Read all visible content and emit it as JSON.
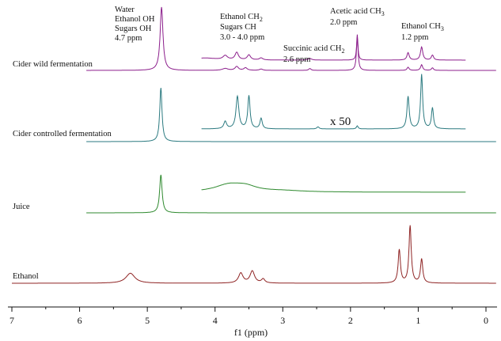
{
  "chart_data": {
    "type": "line",
    "title": "",
    "xlabel": "f1 (ppm)",
    "ylabel": "",
    "xlim": [
      7.2,
      -0.2
    ],
    "x_reversed": true,
    "xticks": [
      "7",
      "6",
      "5",
      "4",
      "3",
      "2",
      "1",
      "0"
    ],
    "grid": false,
    "legend": "none",
    "scale_label": "x 50",
    "series": [
      {
        "name": "Cider wild fermentation",
        "color": "#8c1f8c",
        "baseline_ppm": [
          -0.15,
          5.9
        ],
        "peaks": [
          {
            "ppm": 4.79,
            "height": 1.0,
            "width": 0.025
          },
          {
            "ppm": 3.85,
            "height": 0.03,
            "width": 0.05
          },
          {
            "ppm": 3.68,
            "height": 0.06,
            "width": 0.03
          },
          {
            "ppm": 3.55,
            "height": 0.04,
            "width": 0.03
          },
          {
            "ppm": 3.32,
            "height": 0.02,
            "width": 0.03
          },
          {
            "ppm": 2.6,
            "height": 0.03,
            "width": 0.02
          },
          {
            "ppm": 1.9,
            "height": 0.52,
            "width": 0.015
          },
          {
            "ppm": 1.15,
            "height": 0.05,
            "width": 0.018
          },
          {
            "ppm": 0.95,
            "height": 0.09,
            "width": 0.018
          },
          {
            "ppm": 0.79,
            "height": 0.04,
            "width": 0.018
          }
        ],
        "inset_range_ppm": [
          4.2,
          0.3
        ],
        "inset_peaks": [
          {
            "ppm": 4.15,
            "height": 0.05,
            "width": 0.2
          },
          {
            "ppm": 3.85,
            "height": 0.1,
            "width": 0.04
          },
          {
            "ppm": 3.68,
            "height": 0.18,
            "width": 0.03
          },
          {
            "ppm": 3.5,
            "height": 0.12,
            "width": 0.03
          },
          {
            "ppm": 3.32,
            "height": 0.05,
            "width": 0.03
          },
          {
            "ppm": 2.6,
            "height": 0.04,
            "width": 0.03
          },
          {
            "ppm": 1.9,
            "height": 0.62,
            "width": 0.012
          },
          {
            "ppm": 1.15,
            "height": 0.18,
            "width": 0.02
          },
          {
            "ppm": 0.95,
            "height": 0.32,
            "width": 0.02
          },
          {
            "ppm": 0.79,
            "height": 0.12,
            "width": 0.02
          }
        ]
      },
      {
        "name": "Cider controlled fermentation",
        "color": "#2b7a80",
        "baseline_ppm": [
          -0.15,
          5.9
        ],
        "peaks": [
          {
            "ppm": 4.8,
            "height": 1.0,
            "width": 0.02
          }
        ],
        "inset_range_ppm": [
          4.2,
          0.3
        ],
        "inset_peaks": [
          {
            "ppm": 3.85,
            "height": 0.14,
            "width": 0.025
          },
          {
            "ppm": 3.67,
            "height": 0.62,
            "width": 0.025
          },
          {
            "ppm": 3.5,
            "height": 0.63,
            "width": 0.02
          },
          {
            "ppm": 3.32,
            "height": 0.2,
            "width": 0.02
          },
          {
            "ppm": 2.48,
            "height": 0.04,
            "width": 0.02
          },
          {
            "ppm": 1.9,
            "height": 0.06,
            "width": 0.015
          },
          {
            "ppm": 1.15,
            "height": 0.62,
            "width": 0.02
          },
          {
            "ppm": 0.95,
            "height": 1.04,
            "width": 0.018
          },
          {
            "ppm": 0.79,
            "height": 0.4,
            "width": 0.018
          }
        ]
      },
      {
        "name": "Juice",
        "color": "#2f8a2f",
        "baseline_ppm": [
          -0.15,
          5.9
        ],
        "peaks": [
          {
            "ppm": 4.8,
            "height": 1.0,
            "width": 0.022
          }
        ],
        "inset_range_ppm": [
          4.2,
          0.3
        ],
        "inset_peaks": [
          {
            "ppm": 3.8,
            "height": 0.22,
            "width": 0.25
          },
          {
            "ppm": 3.55,
            "height": 0.15,
            "width": 0.2
          },
          {
            "ppm": 3.0,
            "height": 0.04,
            "width": 0.35
          }
        ]
      },
      {
        "name": "Ethanol",
        "color": "#8f2424",
        "baseline_ppm": [
          -0.15,
          7.0
        ],
        "peaks": [
          {
            "ppm": 5.25,
            "height": 0.15,
            "width": 0.08
          },
          {
            "ppm": 3.62,
            "height": 0.15,
            "width": 0.04
          },
          {
            "ppm": 3.45,
            "height": 0.18,
            "width": 0.04
          },
          {
            "ppm": 3.29,
            "height": 0.06,
            "width": 0.03
          },
          {
            "ppm": 1.28,
            "height": 0.5,
            "width": 0.02
          },
          {
            "ppm": 1.12,
            "height": 0.86,
            "width": 0.02
          },
          {
            "ppm": 0.95,
            "height": 0.36,
            "width": 0.02
          }
        ]
      }
    ],
    "annotations": [
      {
        "lines": [
          "Water",
          "Ethanol OH",
          "Sugars OH",
          "4.7 ppm"
        ]
      },
      {
        "lines": [
          "Ethanol CH",
          "Sugars CH",
          "3.0 - 4.0 ppm"
        ],
        "sub": "2"
      },
      {
        "lines": [
          "Succinic acid CH",
          "2.6 ppm"
        ],
        "sub": "2"
      },
      {
        "lines": [
          "Acetic acid CH",
          "2.0 ppm"
        ],
        "sub": "3"
      },
      {
        "lines": [
          "Ethanol CH",
          "1.2 ppm"
        ],
        "sub": "3"
      }
    ]
  }
}
